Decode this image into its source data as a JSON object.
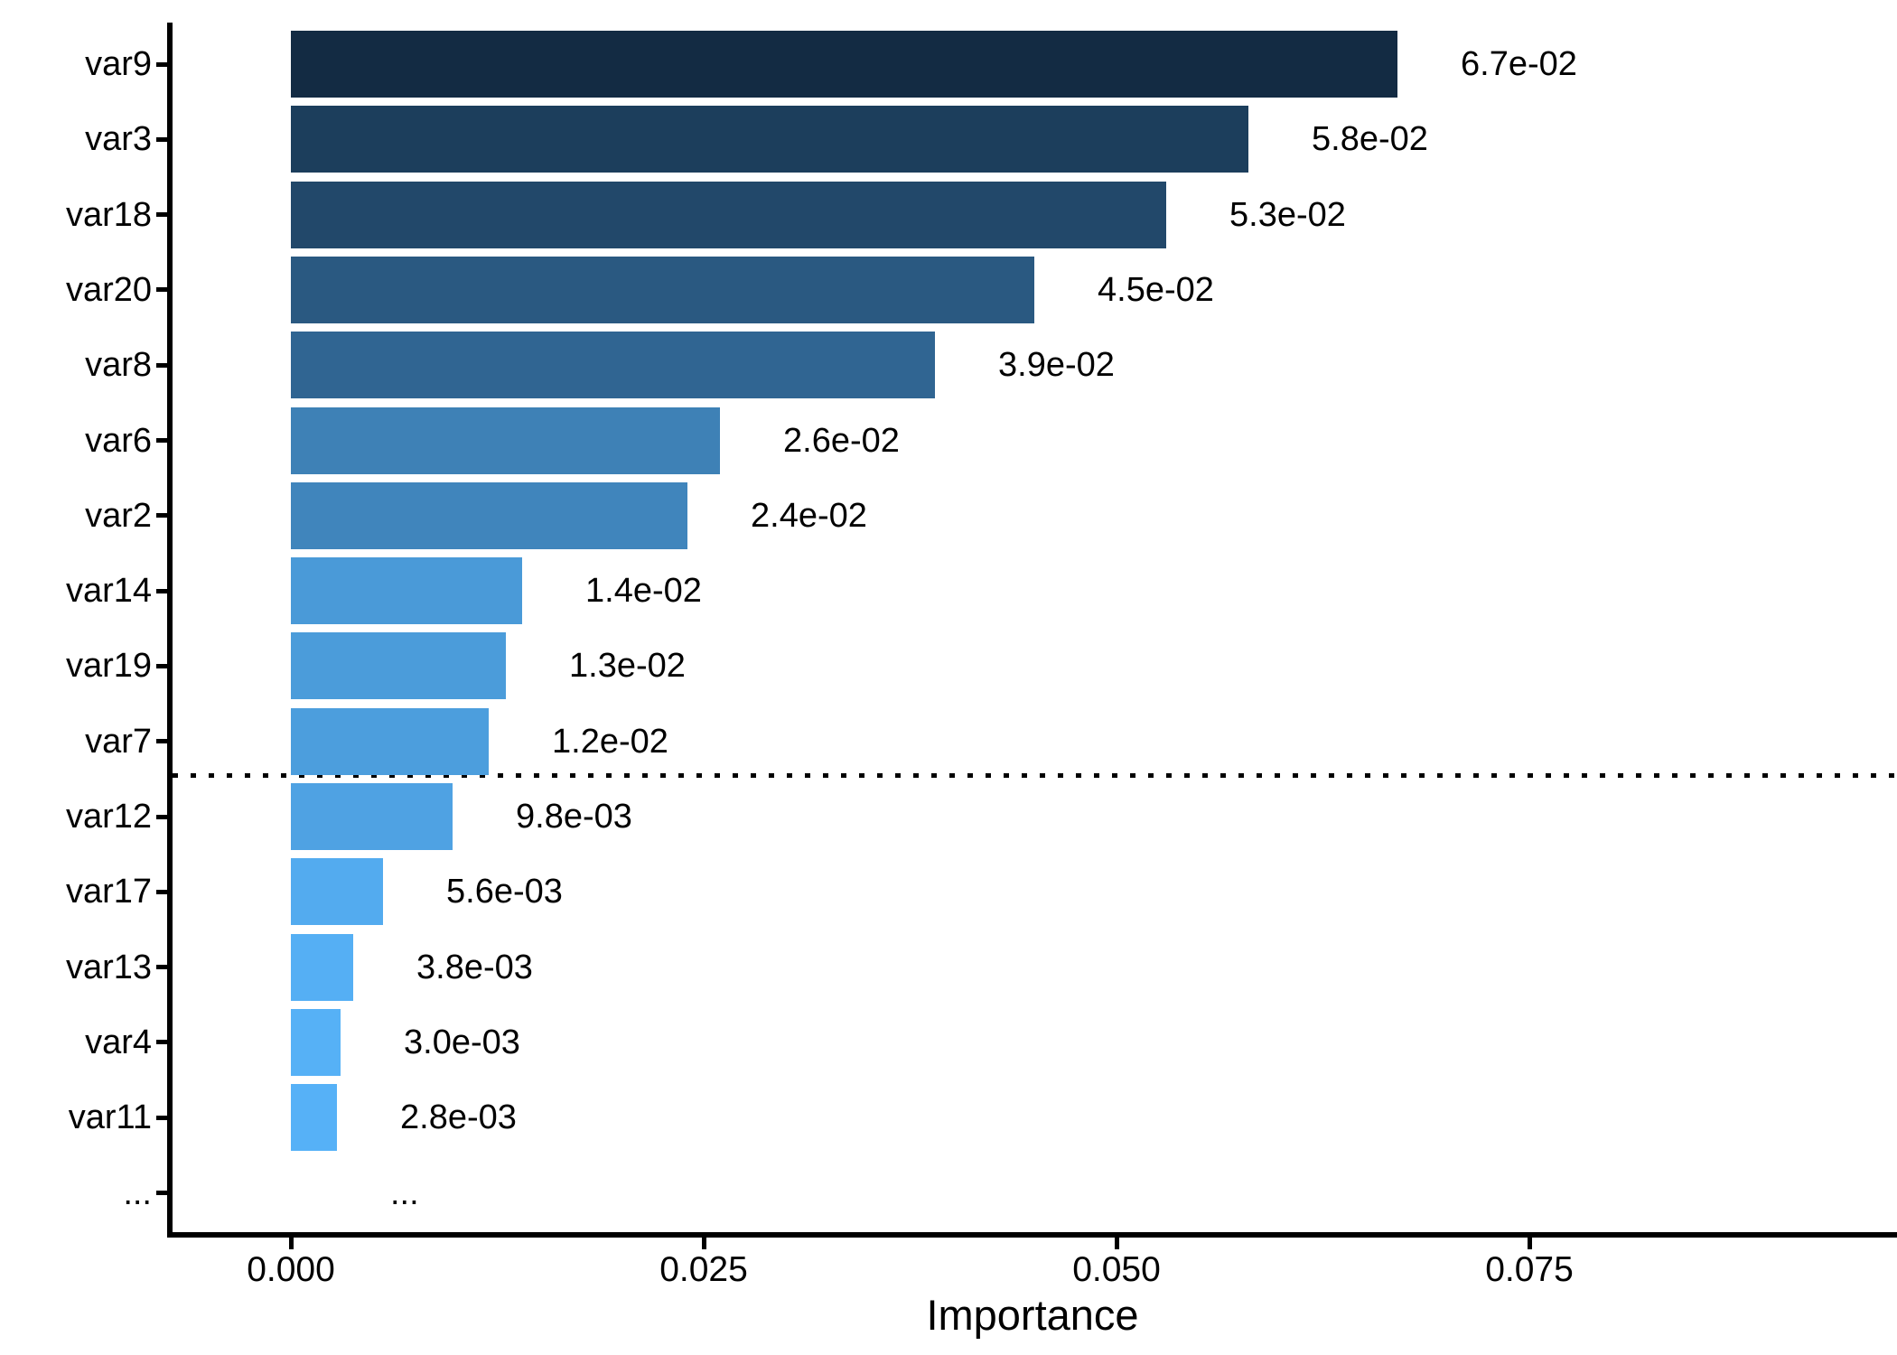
{
  "chart_data": {
    "type": "bar",
    "orientation": "horizontal",
    "title": "",
    "xlabel": "Importance",
    "ylabel": "",
    "categories": [
      "var9",
      "var3",
      "var18",
      "var20",
      "var8",
      "var6",
      "var2",
      "var14",
      "var19",
      "var7",
      "var12",
      "var17",
      "var13",
      "var4",
      "var11",
      "..."
    ],
    "values": [
      0.067,
      0.058,
      0.053,
      0.045,
      0.039,
      0.026,
      0.024,
      0.014,
      0.013,
      0.012,
      0.0098,
      0.0056,
      0.0038,
      0.003,
      0.0028,
      null
    ],
    "bar_labels": [
      "6.7e-02",
      "5.8e-02",
      "5.3e-02",
      "4.5e-02",
      "3.9e-02",
      "2.6e-02",
      "2.4e-02",
      "1.4e-02",
      "1.3e-02",
      "1.2e-02",
      "9.8e-03",
      "5.6e-03",
      "3.8e-03",
      "3.0e-03",
      "2.8e-03",
      "..."
    ],
    "x_ticks": {
      "values": [
        0,
        0.025,
        0.05,
        0.075
      ],
      "labels": [
        "0.000",
        "0.025",
        "0.050",
        "0.075"
      ]
    },
    "xlim": [
      -0.0075,
      0.0972
    ],
    "threshold_line": {
      "style": "dotted",
      "between": [
        "var7",
        "var12"
      ],
      "color": "#000000"
    },
    "colors": {
      "fill_max_importance": "#132B43",
      "fill_min_importance": "#56B1F7",
      "axis": "#000000",
      "text": "#000000",
      "background": "#FFFFFF"
    },
    "grid": false,
    "legend": "none"
  }
}
